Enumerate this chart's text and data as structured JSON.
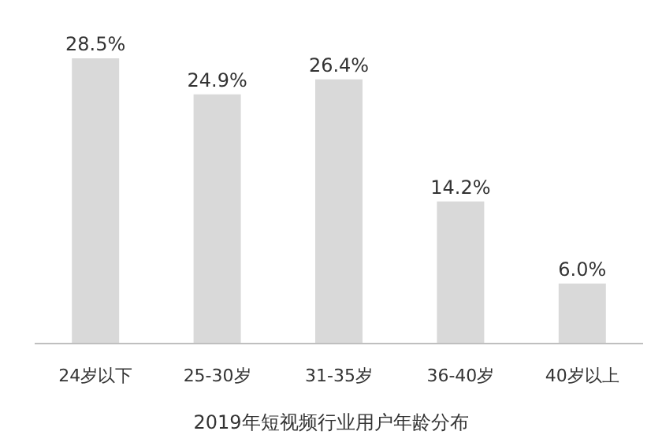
{
  "chart_data": {
    "type": "bar",
    "title": "2019年短视频行业用户年龄分布",
    "categories": [
      "24岁以下",
      "25-30岁",
      "31-35岁",
      "36-40岁",
      "40岁以上"
    ],
    "values": [
      28.5,
      24.9,
      26.4,
      14.2,
      6.0
    ],
    "value_labels": [
      "28.5%",
      "24.9%",
      "26.4%",
      "14.2%",
      "6.0%"
    ],
    "color": "#d9d9d9"
  }
}
